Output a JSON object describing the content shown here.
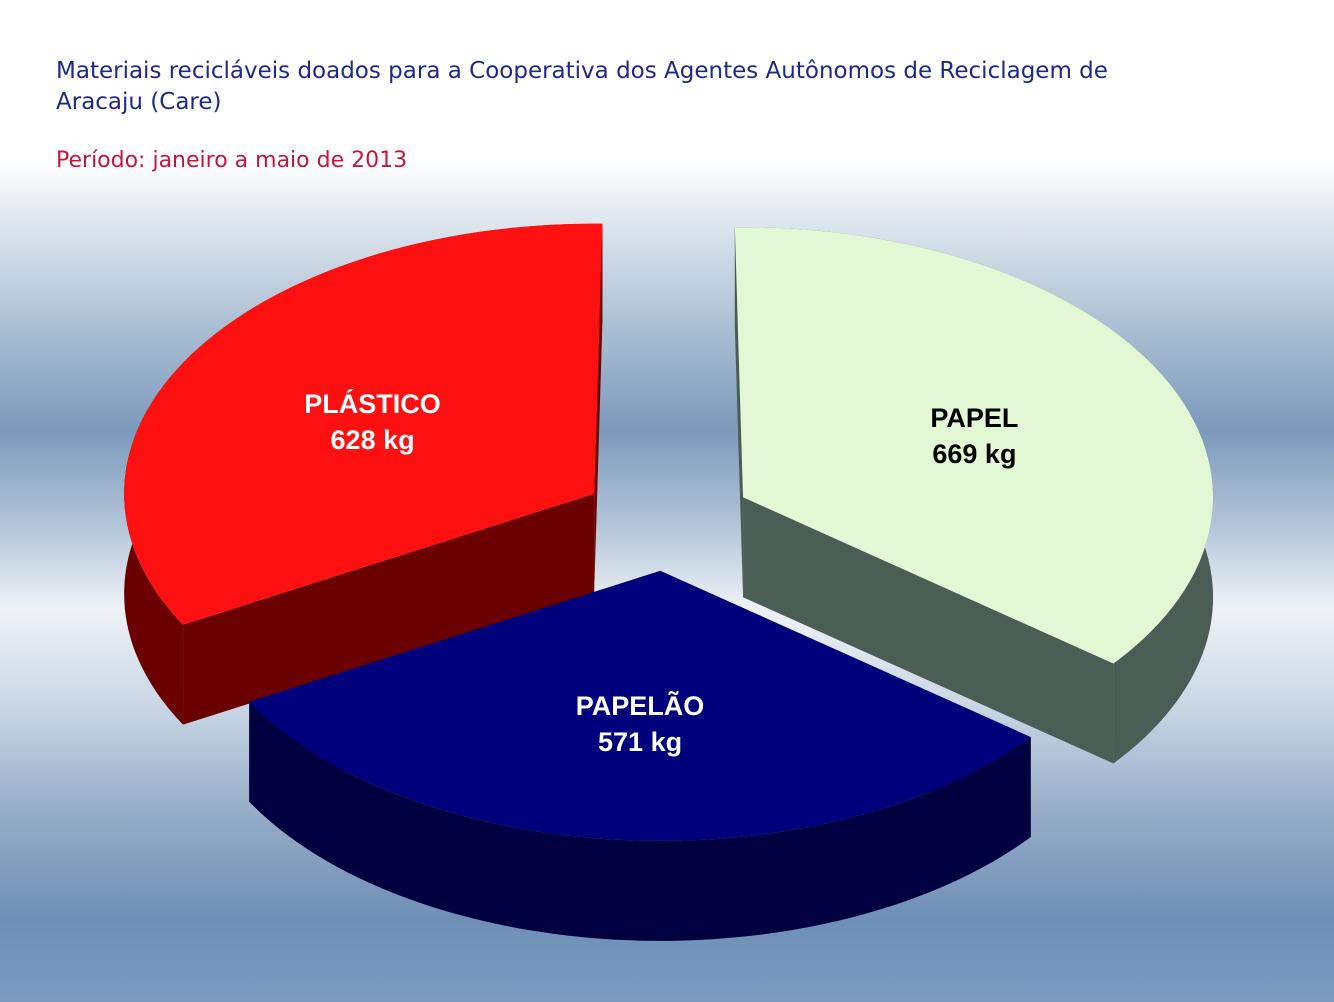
{
  "chart_data": {
    "type": "pie",
    "title": "Materiais recicláveis doados para a Cooperativa dos Agentes Autônomos de Reciclagem de Aracaju (Care)",
    "subtitle": "Período: janeiro a maio de 2013",
    "unit": "kg",
    "slices": [
      {
        "label": "PLÁSTICO",
        "value": 628,
        "value_label": "628 kg",
        "color": "#ff1010",
        "side_color": "#6a0000",
        "text_color": "#ffffff"
      },
      {
        "label": "PAPEL",
        "value": 669,
        "value_label": "669 kg",
        "color": "#e2f7d4",
        "side_color": "#4a5e55",
        "text_color": "#000000"
      },
      {
        "label": "PAPELÃO",
        "value": 571,
        "value_label": "571 kg",
        "color": "#00007c",
        "side_color": "#000040",
        "text_color": "#ffffff"
      }
    ],
    "legend": "none",
    "style": "3d exploded pie"
  }
}
